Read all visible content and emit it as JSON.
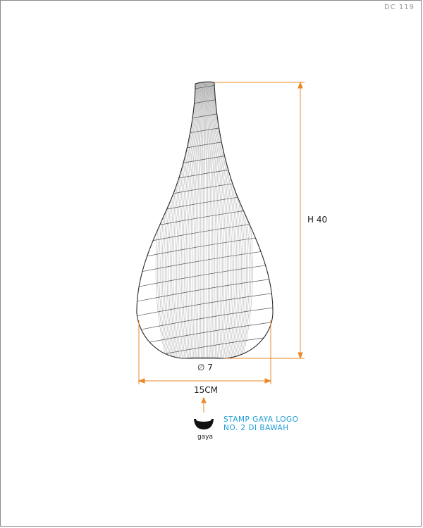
{
  "sheet": {
    "code": "DC 119"
  },
  "dimensions": {
    "height_label": "H 40",
    "base_diameter_label": "∅ 7",
    "width_label": "15CM"
  },
  "logo": {
    "wordmark": "gaya"
  },
  "note": {
    "line1": "STAMP GAYA LOGO",
    "line2": "NO. 2 DI BAWAH"
  },
  "colors": {
    "dimension_line": "#e8892a",
    "note_text": "#1a9bd7",
    "outline": "#333333",
    "pattern": "#9a9a9a"
  }
}
